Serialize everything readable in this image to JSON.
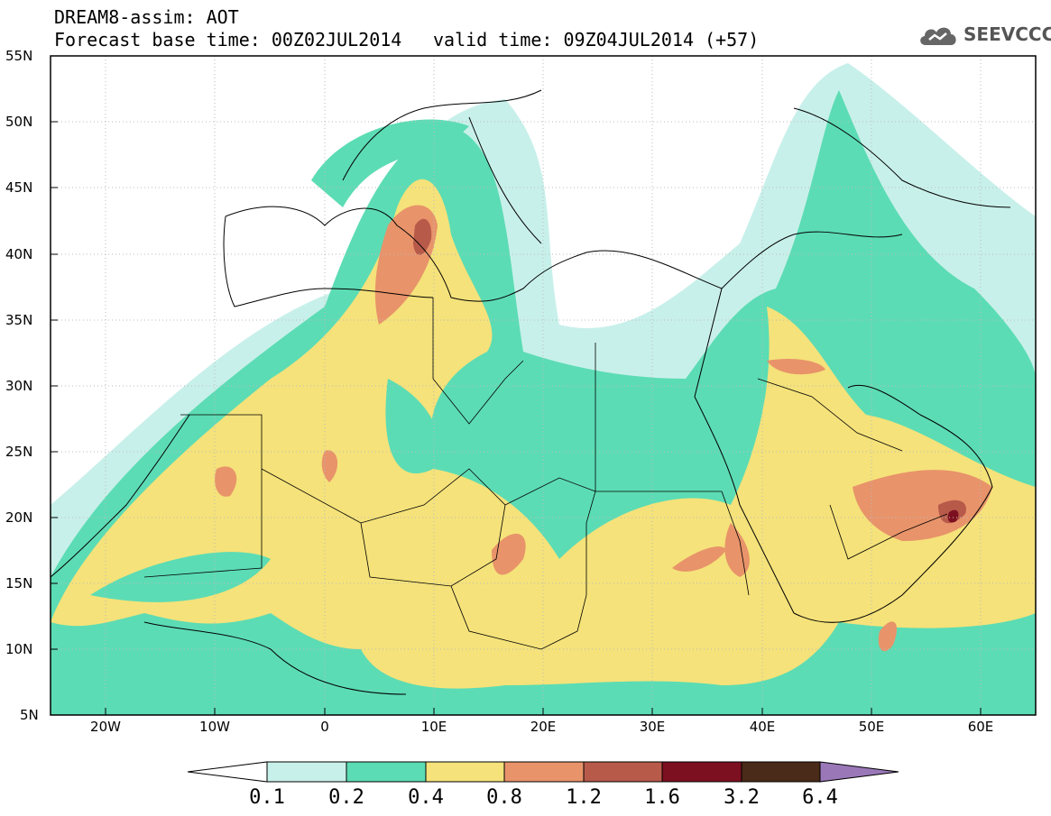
{
  "title": {
    "line1": "DREAM8-assim: AOT",
    "line2": "Forecast base time: 00Z02JUL2014",
    "valid": "valid time: 09Z04JUL2014 (+57)"
  },
  "logo": {
    "text": "SEEVCCC",
    "icon": "cloud-icon"
  },
  "lat_labels": [
    "55N",
    "50N",
    "45N",
    "40N",
    "35N",
    "30N",
    "25N",
    "20N",
    "15N",
    "10N",
    "5N"
  ],
  "lon_labels": [
    "20W",
    "10W",
    "0",
    "10E",
    "20E",
    "30E",
    "40E",
    "50E",
    "60E"
  ],
  "colorbar": {
    "labels": [
      "0.1",
      "0.2",
      "0.4",
      "0.8",
      "1.2",
      "1.6",
      "3.2",
      "6.4"
    ],
    "colors": [
      "#c8f0ea",
      "#5cdcb4",
      "#f5e27a",
      "#e8936a",
      "#b85a4a",
      "#7c1020",
      "#4a2a18",
      "#9a78b8"
    ]
  }
}
